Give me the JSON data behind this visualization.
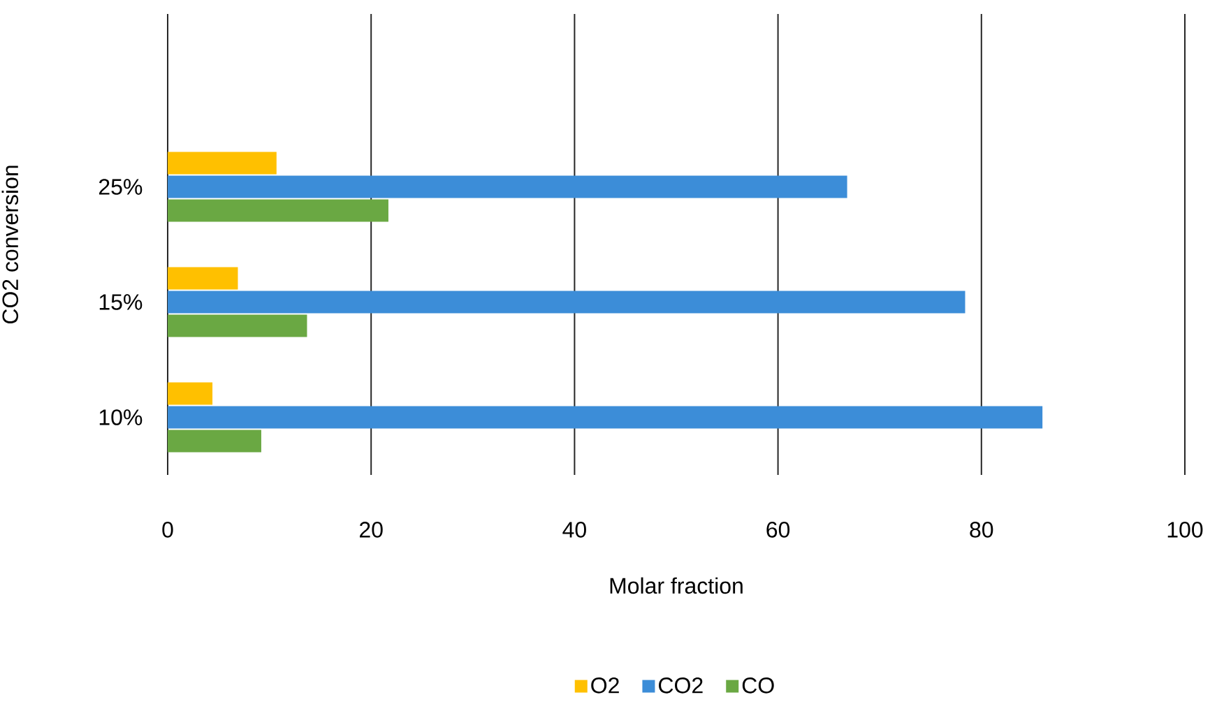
{
  "chart_data": {
    "type": "bar",
    "orientation": "horizontal",
    "xlabel": "Molar fraction",
    "ylabel": "CO2 conversion",
    "categories": [
      "25%",
      "15%",
      "10%"
    ],
    "series": [
      {
        "name": "O2",
        "color": "#ffc000",
        "values": [
          10.7,
          6.9,
          4.4
        ]
      },
      {
        "name": "CO2",
        "color": "#3c8dd8",
        "values": [
          66.8,
          78.4,
          86
        ]
      },
      {
        "name": "CO",
        "color": "#6aa843",
        "values": [
          21.7,
          13.7,
          9.2
        ]
      }
    ],
    "xlim": [
      0,
      100
    ],
    "xticks": [
      0,
      20,
      40,
      60,
      80,
      100
    ],
    "grid": "x",
    "legend": "bottom"
  }
}
